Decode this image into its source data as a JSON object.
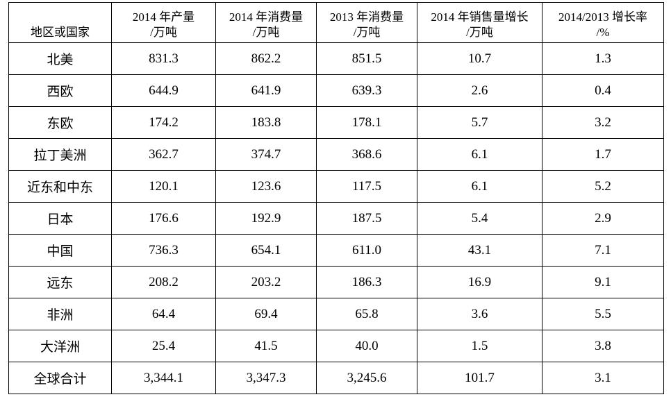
{
  "table": {
    "header": [
      [
        "地区或国家"
      ],
      [
        "2014 年产量",
        "/万吨"
      ],
      [
        "2014 年消费量",
        "/万吨"
      ],
      [
        "2013 年消费量",
        "/万吨"
      ],
      [
        "2014 年销售量增长",
        "/万吨"
      ],
      [
        "2014/2013 增长率",
        "/%"
      ]
    ],
    "rows": [
      [
        "北美",
        "831.3",
        "862.2",
        "851.5",
        "10.7",
        "1.3"
      ],
      [
        "西欧",
        "644.9",
        "641.9",
        "639.3",
        "2.6",
        "0.4"
      ],
      [
        "东欧",
        "174.2",
        "183.8",
        "178.1",
        "5.7",
        "3.2"
      ],
      [
        "拉丁美洲",
        "362.7",
        "374.7",
        "368.6",
        "6.1",
        "1.7"
      ],
      [
        "近东和中东",
        "120.1",
        "123.6",
        "117.5",
        "6.1",
        "5.2"
      ],
      [
        "日本",
        "176.6",
        "192.9",
        "187.5",
        "5.4",
        "2.9"
      ],
      [
        "中国",
        "736.3",
        "654.1",
        "611.0",
        "43.1",
        "7.1"
      ],
      [
        "远东",
        "208.2",
        "203.2",
        "186.3",
        "16.9",
        "9.1"
      ],
      [
        "非洲",
        "64.4",
        "69.4",
        "65.8",
        "3.6",
        "5.5"
      ],
      [
        "大洋洲",
        "25.4",
        "41.5",
        "40.0",
        "1.5",
        "3.8"
      ],
      [
        "全球合计",
        "3,344.1",
        "3,347.3",
        "3,245.6",
        "101.7",
        "3.1"
      ]
    ]
  }
}
